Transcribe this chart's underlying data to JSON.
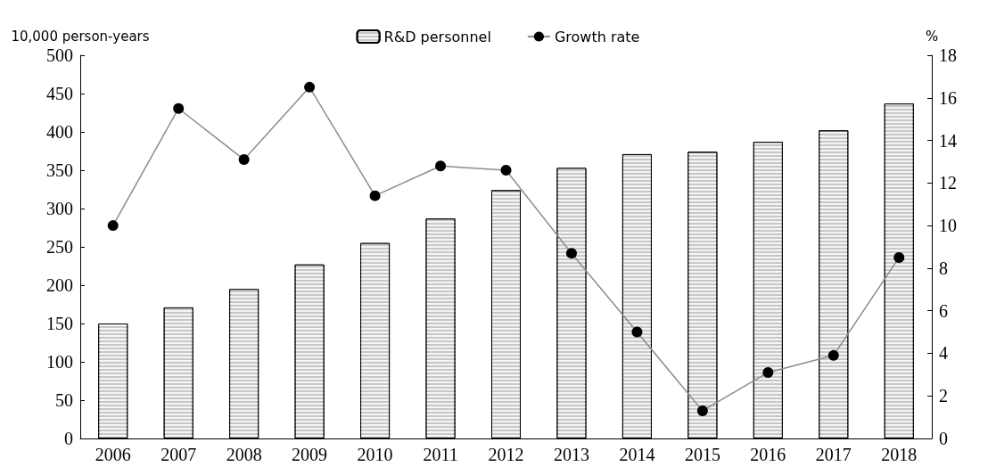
{
  "chart_data": {
    "type": "bar",
    "ylabel": "10,000 person-years",
    "y2label": "%",
    "categories": [
      "2006",
      "2007",
      "2008",
      "2009",
      "2010",
      "2011",
      "2012",
      "2013",
      "2014",
      "2015",
      "2016",
      "2017",
      "2018"
    ],
    "series": [
      {
        "name": "R&D personnel",
        "color": "#c8c8c8",
        "values": [
          150,
          171,
          195,
          227,
          255,
          287,
          324,
          353,
          371,
          374,
          387,
          402,
          437
        ]
      },
      {
        "name": "Growth rate",
        "type": "line",
        "axis": "y2",
        "color": "#000000",
        "marker": "circle",
        "values": [
          10.0,
          15.5,
          13.1,
          16.5,
          11.4,
          12.8,
          12.6,
          8.7,
          5.0,
          1.3,
          3.1,
          3.9,
          8.5
        ]
      }
    ],
    "ylim": [
      0,
      500
    ],
    "yticks": [
      0,
      50,
      100,
      150,
      200,
      250,
      300,
      350,
      400,
      450,
      500
    ],
    "y2lim": [
      0,
      18
    ],
    "y2ticks": [
      0,
      2,
      4,
      6,
      8,
      10,
      12,
      14,
      16,
      18
    ],
    "grid": false,
    "legend": "top"
  }
}
